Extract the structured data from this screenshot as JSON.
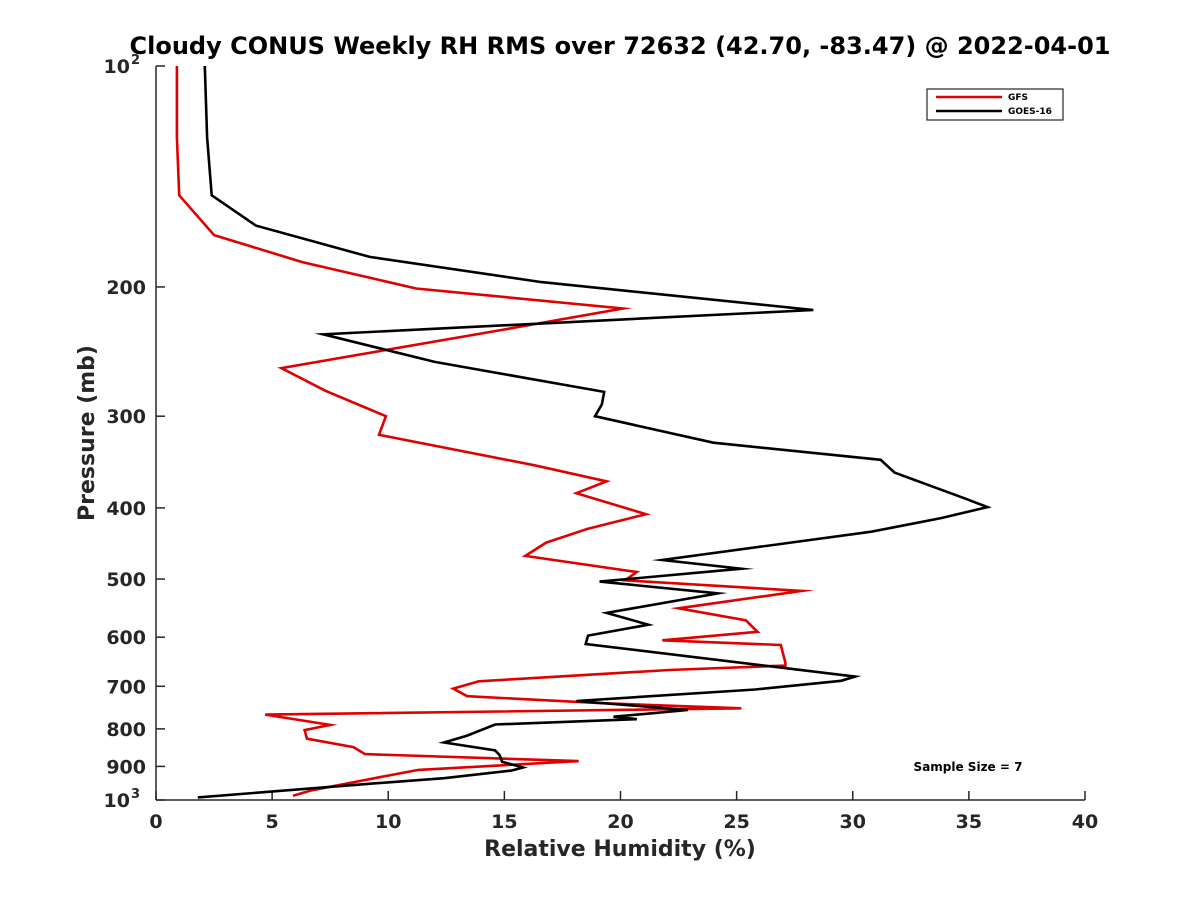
{
  "chart_data": {
    "type": "line",
    "title": "Cloudy CONUS Weekly RH RMS over 72632 (42.70, -83.47) @ 2022-04-01",
    "xlabel": "Relative Humidity (%)",
    "ylabel": "Pressure (mb)",
    "xlim": [
      0,
      40
    ],
    "ylim": [
      100,
      1000
    ],
    "yscale": "log",
    "y_reversed": true,
    "grid": false,
    "legend_position": "top-right",
    "annotation": "Sample Size = 7",
    "x_ticks": [
      "0",
      "5",
      "10",
      "15",
      "20",
      "25",
      "30",
      "35",
      "40"
    ],
    "y_ticks": [
      {
        "value": 100,
        "base": "10",
        "exp": "2"
      },
      {
        "value": 200,
        "label": "200"
      },
      {
        "value": 300,
        "label": "300"
      },
      {
        "value": 400,
        "label": "400"
      },
      {
        "value": 500,
        "label": "500"
      },
      {
        "value": 600,
        "label": "600"
      },
      {
        "value": 700,
        "label": "700"
      },
      {
        "value": 800,
        "label": "800"
      },
      {
        "value": 900,
        "label": "900"
      },
      {
        "value": 1000,
        "base": "10",
        "exp": "3"
      }
    ],
    "series": [
      {
        "name": "GFS",
        "color": "#e00000",
        "points": [
          [
            0.9,
            100
          ],
          [
            0.9,
            125
          ],
          [
            1.0,
            150
          ],
          [
            2.5,
            170
          ],
          [
            6.3,
            185
          ],
          [
            11.2,
            201
          ],
          [
            20.1,
            214
          ],
          [
            14.5,
            230
          ],
          [
            5.4,
            258
          ],
          [
            7.3,
            277
          ],
          [
            9.9,
            300
          ],
          [
            9.6,
            318
          ],
          [
            16.3,
            350
          ],
          [
            19.4,
            368
          ],
          [
            18.1,
            382
          ],
          [
            21.1,
            408
          ],
          [
            18.6,
            427
          ],
          [
            16.8,
            446
          ],
          [
            15.9,
            465
          ],
          [
            20.7,
            489
          ],
          [
            20.2,
            502
          ],
          [
            27.8,
            519
          ],
          [
            22.5,
            548
          ],
          [
            25.4,
            569
          ],
          [
            25.9,
            590
          ],
          [
            21.8,
            606
          ],
          [
            26.9,
            615
          ],
          [
            27.1,
            650
          ],
          [
            27.1,
            656
          ],
          [
            22.1,
            665
          ],
          [
            13.9,
            689
          ],
          [
            12.8,
            705
          ],
          [
            13.4,
            722
          ],
          [
            19.2,
            738
          ],
          [
            25.2,
            750
          ],
          [
            4.7,
            765
          ],
          [
            7.5,
            790
          ],
          [
            6.4,
            803
          ],
          [
            6.5,
            825
          ],
          [
            8.5,
            847
          ],
          [
            9.0,
            866
          ],
          [
            18.2,
            885
          ],
          [
            11.3,
            910
          ],
          [
            10.1,
            925
          ],
          [
            8.2,
            950
          ],
          [
            6.7,
            970
          ],
          [
            5.9,
            987
          ]
        ]
      },
      {
        "name": "GOES-16",
        "color": "#000000",
        "points": [
          [
            2.1,
            100
          ],
          [
            2.2,
            125
          ],
          [
            2.4,
            150
          ],
          [
            4.3,
            165
          ],
          [
            9.2,
            182
          ],
          [
            16.6,
            197
          ],
          [
            28.3,
            215
          ],
          [
            7.2,
            232
          ],
          [
            12.0,
            253
          ],
          [
            19.3,
            278
          ],
          [
            19.2,
            289
          ],
          [
            18.9,
            300
          ],
          [
            24.0,
            326
          ],
          [
            31.2,
            344
          ],
          [
            31.8,
            358
          ],
          [
            34.8,
            388
          ],
          [
            35.8,
            399
          ],
          [
            33.8,
            413
          ],
          [
            30.8,
            431
          ],
          [
            21.8,
            471
          ],
          [
            25.2,
            484
          ],
          [
            19.1,
            504
          ],
          [
            24.2,
            523
          ],
          [
            19.4,
            556
          ],
          [
            21.2,
            577
          ],
          [
            18.6,
            597
          ],
          [
            18.5,
            613
          ],
          [
            30.1,
            679
          ],
          [
            29.5,
            688
          ],
          [
            25.8,
            707
          ],
          [
            18.1,
            733
          ],
          [
            22.9,
            754
          ],
          [
            19.7,
            770
          ],
          [
            20.7,
            776
          ],
          [
            14.6,
            789
          ],
          [
            13.4,
            817
          ],
          [
            12.4,
            835
          ],
          [
            14.6,
            856
          ],
          [
            14.8,
            869
          ],
          [
            14.9,
            887
          ],
          [
            15.8,
            903
          ],
          [
            15.3,
            912
          ],
          [
            12.4,
            934
          ],
          [
            9.3,
            950
          ],
          [
            1.8,
            992
          ]
        ]
      }
    ]
  }
}
